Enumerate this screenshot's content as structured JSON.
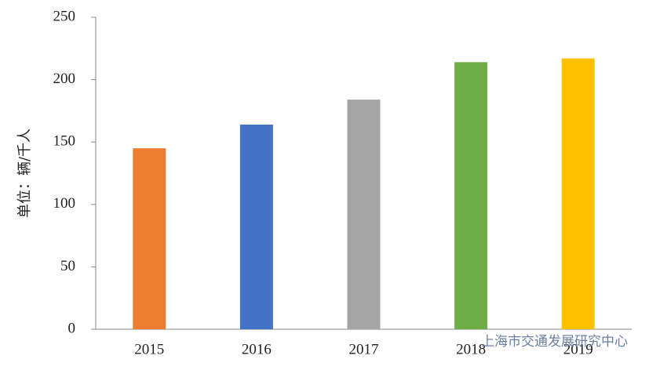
{
  "chart_data": {
    "type": "bar",
    "y_axis_label": "单位：辆/千人",
    "categories": [
      "2015",
      "2016",
      "2017",
      "2018",
      "2019"
    ],
    "values": [
      145,
      164,
      184,
      214,
      217
    ],
    "colors": [
      "#ED7D31",
      "#4472C4",
      "#A5A5A5",
      "#70AD47",
      "#FFC000"
    ],
    "ylim": [
      0,
      250
    ],
    "yticks": [
      0,
      50,
      100,
      150,
      200,
      250
    ],
    "grid": false,
    "watermark": "上海市交通发展研究中心"
  }
}
